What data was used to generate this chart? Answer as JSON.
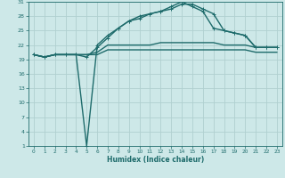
{
  "xlabel": "Humidex (Indice chaleur)",
  "background_color": "#cde8e8",
  "grid_color": "#b0d0d0",
  "line_color": "#1e6b6b",
  "xlim": [
    -0.5,
    23.5
  ],
  "ylim": [
    1,
    31
  ],
  "xticks": [
    0,
    1,
    2,
    3,
    4,
    5,
    6,
    7,
    8,
    9,
    10,
    11,
    12,
    13,
    14,
    15,
    16,
    17,
    18,
    19,
    20,
    21,
    22,
    23
  ],
  "yticks": [
    1,
    4,
    7,
    10,
    13,
    16,
    19,
    22,
    25,
    28,
    31
  ],
  "series": [
    {
      "x": [
        0,
        1,
        2,
        3,
        4,
        5,
        6,
        7,
        8,
        9,
        10,
        11,
        12,
        13,
        14,
        15,
        16,
        17,
        18,
        19,
        20,
        21,
        22,
        23
      ],
      "y": [
        20,
        19.5,
        20,
        20,
        20,
        20,
        20,
        21,
        21,
        21,
        21,
        21,
        21,
        21,
        21,
        21,
        21,
        21,
        21,
        21,
        21,
        20.5,
        20.5,
        20.5
      ],
      "marker": false,
      "lw": 1.0
    },
    {
      "x": [
        0,
        1,
        2,
        3,
        4,
        5,
        6,
        7,
        8,
        9,
        10,
        11,
        12,
        13,
        14,
        15,
        16,
        17,
        18,
        19,
        20,
        21,
        22,
        23
      ],
      "y": [
        20,
        19.5,
        20,
        20,
        20,
        20,
        20.5,
        22,
        22,
        22,
        22,
        22,
        22.5,
        22.5,
        22.5,
        22.5,
        22.5,
        22.5,
        22,
        22,
        22,
        21.5,
        21.5,
        21.5
      ],
      "marker": false,
      "lw": 1.0
    },
    {
      "x": [
        0,
        1,
        2,
        3,
        4,
        5,
        6,
        7,
        8,
        9,
        10,
        11,
        12,
        13,
        14,
        15,
        16,
        17,
        18,
        19,
        20,
        21,
        22,
        23
      ],
      "y": [
        20,
        19.5,
        20,
        20,
        20,
        1,
        22,
        24,
        25.5,
        27,
        27.5,
        28.5,
        29,
        29.5,
        30.5,
        30.5,
        29.5,
        28.5,
        25,
        24.5,
        24,
        21.5,
        21.5,
        21.5
      ],
      "marker": true,
      "lw": 1.0
    },
    {
      "x": [
        0,
        1,
        2,
        3,
        4,
        5,
        6,
        7,
        8,
        9,
        10,
        11,
        12,
        13,
        14,
        15,
        16,
        17,
        18,
        19,
        20,
        21,
        22,
        23
      ],
      "y": [
        20,
        19.5,
        20,
        20,
        20,
        19.5,
        21.5,
        23.5,
        25.5,
        27,
        28,
        28.5,
        29,
        30,
        31,
        30,
        29,
        25.5,
        25,
        24.5,
        24,
        21.5,
        21.5,
        21.5
      ],
      "marker": true,
      "lw": 1.0
    }
  ]
}
